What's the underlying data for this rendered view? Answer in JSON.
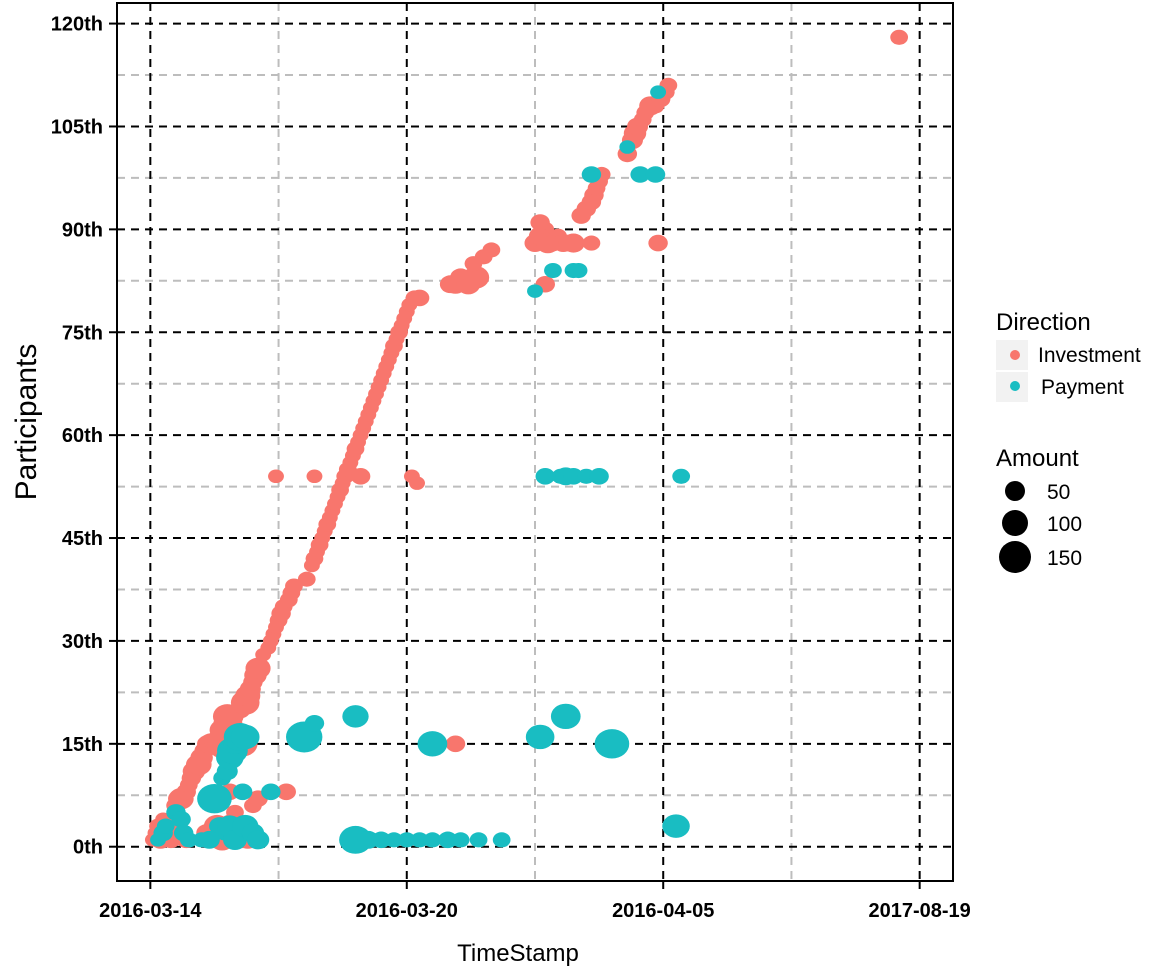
{
  "chart_data": {
    "type": "scatter",
    "title": "",
    "xlabel": "TimeStamp",
    "ylabel": "Participants",
    "x_ticks": [
      "2016-03-14",
      "2016-03-20",
      "2016-04-05",
      "2017-08-19"
    ],
    "x_tick_positions": [
      0,
      1,
      2,
      3
    ],
    "xlim": [
      -0.13,
      3.13
    ],
    "y_ticks": [
      "0th",
      "15th",
      "30th",
      "45th",
      "60th",
      "75th",
      "90th",
      "105th",
      "120th"
    ],
    "y_tick_values": [
      0,
      15,
      30,
      45,
      60,
      75,
      90,
      105,
      120
    ],
    "ylim": [
      -5,
      123
    ],
    "grid": true,
    "legend": {
      "position": "right",
      "color_title": "Direction",
      "size_title": "Amount",
      "size_entries": [
        50,
        100,
        150
      ]
    },
    "colors": {
      "Investment": "#F8766D",
      "Payment": "#19BDC2"
    },
    "series": [
      {
        "name": "Investment",
        "points": [
          [
            0.01,
            1,
            8
          ],
          [
            0.02,
            2,
            8
          ],
          [
            0.03,
            3,
            10
          ],
          [
            0.05,
            4,
            8
          ],
          [
            0.04,
            1,
            14
          ],
          [
            0.07,
            2,
            20
          ],
          [
            0.08,
            1,
            12
          ],
          [
            0.09,
            3,
            8
          ],
          [
            0.1,
            5,
            8
          ],
          [
            0.1,
            6,
            12
          ],
          [
            0.11,
            7,
            14
          ],
          [
            0.12,
            7,
            20
          ],
          [
            0.14,
            8,
            12
          ],
          [
            0.15,
            9,
            10
          ],
          [
            0.14,
            1,
            12
          ],
          [
            0.16,
            10,
            12
          ],
          [
            0.17,
            11,
            16
          ],
          [
            0.18,
            12,
            14
          ],
          [
            0.19,
            12,
            20
          ],
          [
            0.2,
            13,
            16
          ],
          [
            0.21,
            14,
            12
          ],
          [
            0.22,
            15,
            12
          ],
          [
            0.23,
            15,
            16
          ],
          [
            0.24,
            15,
            20
          ],
          [
            0.25,
            15,
            12
          ],
          [
            0.26,
            15,
            16
          ],
          [
            0.27,
            16,
            14
          ],
          [
            0.28,
            17,
            20
          ],
          [
            0.29,
            18,
            16
          ],
          [
            0.29,
            15,
            40
          ],
          [
            0.3,
            19,
            26
          ],
          [
            0.31,
            18,
            20
          ],
          [
            0.32,
            19,
            16
          ],
          [
            0.33,
            16,
            12
          ],
          [
            0.35,
            20,
            14
          ],
          [
            0.36,
            21,
            16
          ],
          [
            0.37,
            21,
            26
          ],
          [
            0.38,
            22,
            20
          ],
          [
            0.39,
            23,
            14
          ],
          [
            0.4,
            24,
            12
          ],
          [
            0.41,
            25,
            16
          ],
          [
            0.42,
            26,
            20
          ],
          [
            0.36,
            15,
            28
          ],
          [
            0.22,
            2,
            14
          ],
          [
            0.28,
            1,
            20
          ],
          [
            0.26,
            3,
            22
          ],
          [
            0.32,
            3,
            26
          ],
          [
            0.36,
            1,
            12
          ],
          [
            0.31,
            8,
            12
          ],
          [
            0.53,
            8,
            12
          ],
          [
            0.38,
            1,
            14
          ],
          [
            0.44,
            28,
            8
          ],
          [
            0.46,
            29,
            8
          ],
          [
            0.47,
            30,
            8
          ],
          [
            0.48,
            31,
            8
          ],
          [
            0.49,
            32,
            8
          ],
          [
            0.5,
            33,
            10
          ],
          [
            0.51,
            34,
            12
          ],
          [
            0.52,
            35,
            10
          ],
          [
            0.54,
            36,
            10
          ],
          [
            0.55,
            37,
            10
          ],
          [
            0.56,
            38,
            10
          ],
          [
            0.61,
            39,
            10
          ],
          [
            0.63,
            41,
            8
          ],
          [
            0.64,
            42,
            10
          ],
          [
            0.65,
            43,
            8
          ],
          [
            0.66,
            44,
            10
          ],
          [
            0.67,
            45,
            8
          ],
          [
            0.68,
            46,
            8
          ],
          [
            0.69,
            47,
            10
          ],
          [
            0.7,
            48,
            8
          ],
          [
            0.71,
            49,
            8
          ],
          [
            0.72,
            50,
            8
          ],
          [
            0.73,
            51,
            8
          ],
          [
            0.74,
            52,
            10
          ],
          [
            0.75,
            53,
            8
          ],
          [
            0.76,
            54,
            10
          ],
          [
            0.77,
            55,
            10
          ],
          [
            0.78,
            56,
            8
          ],
          [
            0.79,
            57,
            8
          ],
          [
            0.8,
            58,
            10
          ],
          [
            0.81,
            59,
            8
          ],
          [
            0.82,
            60,
            8
          ],
          [
            0.83,
            61,
            8
          ],
          [
            0.84,
            62,
            8
          ],
          [
            0.85,
            63,
            8
          ],
          [
            0.86,
            64,
            8
          ],
          [
            0.87,
            65,
            8
          ],
          [
            0.88,
            66,
            8
          ],
          [
            0.89,
            67,
            8
          ],
          [
            0.9,
            68,
            8
          ],
          [
            0.91,
            69,
            8
          ],
          [
            0.92,
            70,
            8
          ],
          [
            0.93,
            71,
            8
          ],
          [
            0.94,
            72,
            8
          ],
          [
            0.95,
            73,
            10
          ],
          [
            0.96,
            74,
            8
          ],
          [
            0.97,
            75,
            10
          ],
          [
            0.98,
            76,
            8
          ],
          [
            0.99,
            77,
            8
          ],
          [
            1.0,
            78,
            8
          ],
          [
            1.01,
            79,
            8
          ],
          [
            1.03,
            80,
            10
          ],
          [
            1.05,
            80,
            12
          ],
          [
            0.82,
            54,
            12
          ],
          [
            1.17,
            82,
            14
          ],
          [
            1.19,
            82,
            16
          ],
          [
            1.21,
            83,
            14
          ],
          [
            1.24,
            82,
            18
          ],
          [
            1.27,
            83,
            22
          ],
          [
            1.3,
            86,
            10
          ],
          [
            1.33,
            87,
            10
          ],
          [
            1.26,
            85,
            10
          ],
          [
            1.5,
            88,
            14
          ],
          [
            1.52,
            89,
            16
          ],
          [
            1.54,
            90,
            10
          ],
          [
            1.55,
            88,
            18
          ],
          [
            1.57,
            88,
            12
          ],
          [
            1.52,
            91,
            12
          ],
          [
            1.59,
            89,
            10
          ],
          [
            1.61,
            88,
            14
          ],
          [
            1.63,
            88,
            12
          ],
          [
            1.65,
            88,
            16
          ],
          [
            1.54,
            82,
            12
          ],
          [
            1.68,
            92,
            12
          ],
          [
            1.7,
            93,
            12
          ],
          [
            1.72,
            94,
            12
          ],
          [
            1.73,
            95,
            12
          ],
          [
            1.74,
            96,
            10
          ],
          [
            1.75,
            97,
            10
          ],
          [
            1.76,
            98,
            10
          ],
          [
            1.72,
            88,
            10
          ],
          [
            1.86,
            101,
            12
          ],
          [
            1.88,
            103,
            14
          ],
          [
            1.89,
            104,
            16
          ],
          [
            1.9,
            105,
            14
          ],
          [
            1.92,
            106,
            10
          ],
          [
            1.93,
            107,
            10
          ],
          [
            1.95,
            108,
            16
          ],
          [
            1.97,
            108,
            10
          ],
          [
            1.99,
            109,
            12
          ],
          [
            2.01,
            110,
            10
          ],
          [
            2.02,
            111,
            10
          ],
          [
            1.98,
            88,
            12
          ],
          [
            2.92,
            118,
            10
          ],
          [
            0.49,
            54,
            8
          ],
          [
            0.64,
            54,
            8
          ],
          [
            1.02,
            54,
            8
          ],
          [
            1.04,
            53,
            8
          ],
          [
            1.19,
            15,
            12
          ],
          [
            0.37,
            2,
            16
          ],
          [
            0.38,
            3,
            12
          ],
          [
            0.4,
            6,
            10
          ],
          [
            0.42,
            7,
            12
          ],
          [
            0.33,
            5,
            10
          ]
        ]
      },
      {
        "name": "Payment",
        "points": [
          [
            0.03,
            1,
            8
          ],
          [
            0.05,
            2,
            12
          ],
          [
            0.06,
            3,
            10
          ],
          [
            0.1,
            5,
            12
          ],
          [
            0.12,
            4,
            12
          ],
          [
            0.13,
            2,
            12
          ],
          [
            0.15,
            1,
            10
          ],
          [
            0.2,
            1,
            10
          ],
          [
            0.25,
            7,
            38
          ],
          [
            0.28,
            10,
            10
          ],
          [
            0.3,
            11,
            14
          ],
          [
            0.31,
            13,
            24
          ],
          [
            0.32,
            14,
            30
          ],
          [
            0.33,
            15,
            18
          ],
          [
            0.35,
            16,
            34
          ],
          [
            0.37,
            16,
            26
          ],
          [
            0.27,
            3,
            14
          ],
          [
            0.29,
            2,
            10
          ],
          [
            0.31,
            3,
            20
          ],
          [
            0.33,
            1,
            18
          ],
          [
            0.37,
            3,
            22
          ],
          [
            0.4,
            2,
            16
          ],
          [
            0.42,
            1,
            16
          ],
          [
            0.23,
            1,
            14
          ],
          [
            0.36,
            8,
            12
          ],
          [
            0.47,
            8,
            12
          ],
          [
            0.6,
            16,
            42
          ],
          [
            0.64,
            18,
            12
          ],
          [
            0.8,
            19,
            22
          ],
          [
            0.8,
            1,
            34
          ],
          [
            0.85,
            1,
            14
          ],
          [
            0.9,
            1,
            12
          ],
          [
            0.95,
            1,
            10
          ],
          [
            1.0,
            1,
            10
          ],
          [
            1.05,
            1,
            10
          ],
          [
            1.1,
            1,
            10
          ],
          [
            1.16,
            1,
            12
          ],
          [
            1.21,
            1,
            10
          ],
          [
            1.28,
            1,
            10
          ],
          [
            1.37,
            1,
            10
          ],
          [
            1.1,
            15,
            28
          ],
          [
            1.52,
            16,
            26
          ],
          [
            1.62,
            19,
            28
          ],
          [
            1.8,
            15,
            38
          ],
          [
            2.05,
            3,
            24
          ],
          [
            1.54,
            54,
            12
          ],
          [
            1.6,
            54,
            10
          ],
          [
            1.62,
            54,
            14
          ],
          [
            1.65,
            54,
            12
          ],
          [
            1.7,
            54,
            10
          ],
          [
            1.75,
            54,
            12
          ],
          [
            2.07,
            54,
            10
          ],
          [
            1.65,
            84,
            10
          ],
          [
            1.72,
            98,
            12
          ],
          [
            1.91,
            98,
            12
          ],
          [
            1.97,
            98,
            12
          ],
          [
            1.98,
            110,
            8
          ],
          [
            1.86,
            102,
            8
          ],
          [
            1.57,
            84,
            10
          ],
          [
            1.5,
            81,
            8
          ],
          [
            1.67,
            84,
            10
          ]
        ]
      }
    ]
  }
}
